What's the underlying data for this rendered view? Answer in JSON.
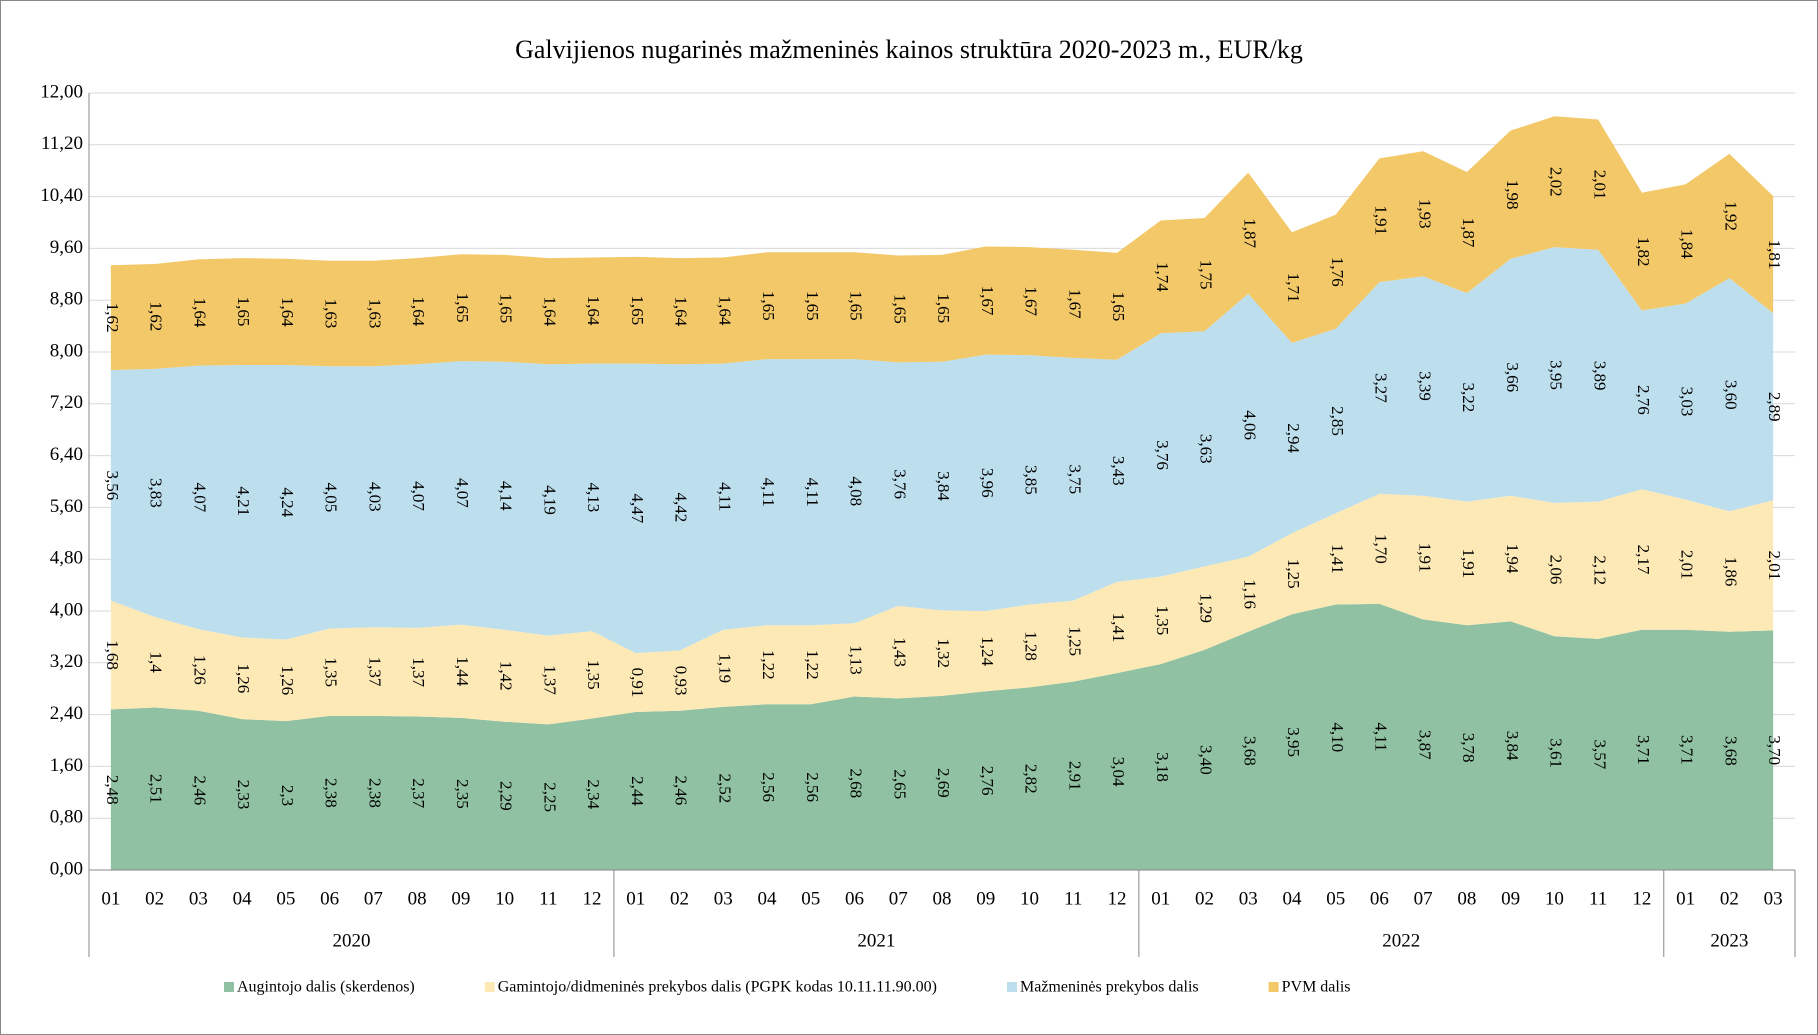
{
  "chart_data": {
    "type": "stacked_area",
    "title": "Galvijienos nugarinės mažmeninės kainos struktūra 2020-2023 m., EUR/kg",
    "groups": [
      {
        "label": "2020",
        "categories": [
          "01",
          "02",
          "03",
          "04",
          "05",
          "06",
          "07",
          "08",
          "09",
          "10",
          "11",
          "12"
        ]
      },
      {
        "label": "2021",
        "categories": [
          "01",
          "02",
          "03",
          "04",
          "05",
          "06",
          "07",
          "08",
          "09",
          "10",
          "11",
          "12"
        ]
      },
      {
        "label": "2022",
        "categories": [
          "01",
          "02",
          "03",
          "04",
          "05",
          "06",
          "07",
          "08",
          "09",
          "10",
          "11",
          "12"
        ]
      },
      {
        "label": "2023",
        "categories": [
          "01",
          "02",
          "03"
        ]
      }
    ],
    "ylim": [
      0,
      12
    ],
    "yticks": [
      {
        "value": 0,
        "label": "0,00"
      },
      {
        "value": 0.8,
        "label": "0,80"
      },
      {
        "value": 1.6,
        "label": "1,60"
      },
      {
        "value": 2.4,
        "label": "2,40"
      },
      {
        "value": 3.2,
        "label": "3,20"
      },
      {
        "value": 4,
        "label": "4,00"
      },
      {
        "value": 4.8,
        "label": "4,80"
      },
      {
        "value": 5.6,
        "label": "5,60"
      },
      {
        "value": 6.4,
        "label": "6,40"
      },
      {
        "value": 7.2,
        "label": "7,20"
      },
      {
        "value": 8,
        "label": "8,00"
      },
      {
        "value": 8.8,
        "label": "8,80"
      },
      {
        "value": 9.6,
        "label": "9,60"
      },
      {
        "value": 10.4,
        "label": "10,40"
      },
      {
        "value": 11.2,
        "label": "11,20"
      },
      {
        "value": 12,
        "label": "12,00"
      }
    ],
    "grid": true,
    "legend": "bottom",
    "series": [
      {
        "name": "Augintojo dalis (skerdenos)",
        "color": "#8fc1a2",
        "values": [
          2.48,
          2.51,
          2.46,
          2.33,
          2.3,
          2.38,
          2.38,
          2.37,
          2.35,
          2.29,
          2.25,
          2.34,
          2.44,
          2.46,
          2.52,
          2.56,
          2.56,
          2.68,
          2.65,
          2.69,
          2.76,
          2.82,
          2.91,
          3.04,
          3.18,
          3.4,
          3.68,
          3.95,
          4.1,
          4.11,
          3.87,
          3.78,
          3.84,
          3.61,
          3.57,
          3.71,
          3.71,
          3.68,
          3.7
        ],
        "value_labels": [
          "2,48",
          "2,51",
          "2,46",
          "2,33",
          "2,3",
          "2,38",
          "2,38",
          "2,37",
          "2,35",
          "2,29",
          "2,25",
          "2,34",
          "2,44",
          "2,46",
          "2,52",
          "2,56",
          "2,56",
          "2,68",
          "2,65",
          "2,69",
          "2,76",
          "2,82",
          "2,91",
          "3,04",
          "3,18",
          "3,40",
          "3,68",
          "3,95",
          "4,10",
          "4,11",
          "3,87",
          "3,78",
          "3,84",
          "3,61",
          "3,57",
          "3,71",
          "3,71",
          "3,68",
          "3,70"
        ]
      },
      {
        "name": "Gamintojo/didmeninės prekybos dalis (PGPK kodas 10.11.11.90.00)",
        "color": "#fde9b6",
        "values": [
          1.68,
          1.4,
          1.26,
          1.26,
          1.26,
          1.35,
          1.37,
          1.37,
          1.44,
          1.42,
          1.37,
          1.35,
          0.91,
          0.93,
          1.19,
          1.22,
          1.22,
          1.13,
          1.43,
          1.32,
          1.24,
          1.28,
          1.25,
          1.41,
          1.35,
          1.29,
          1.16,
          1.25,
          1.41,
          1.7,
          1.91,
          1.91,
          1.94,
          2.06,
          2.12,
          2.17,
          2.01,
          1.86,
          2.01
        ],
        "value_labels": [
          "1,68",
          "1,4",
          "1,26",
          "1,26",
          "1,26",
          "1,35",
          "1,37",
          "1,37",
          "1,44",
          "1,42",
          "1,37",
          "1,35",
          "0,91",
          "0,93",
          "1,19",
          "1,22",
          "1,22",
          "1,13",
          "1,43",
          "1,32",
          "1,24",
          "1,28",
          "1,25",
          "1,41",
          "1,35",
          "1,29",
          "1,16",
          "1,25",
          "1,41",
          "1,70",
          "1,91",
          "1,91",
          "1,94",
          "2,06",
          "2,12",
          "2,17",
          "2,01",
          "1,86",
          "2,01"
        ]
      },
      {
        "name": "Mažmeninės prekybos dalis",
        "color": "#bddeed",
        "values": [
          3.56,
          3.83,
          4.07,
          4.21,
          4.24,
          4.05,
          4.03,
          4.07,
          4.07,
          4.14,
          4.19,
          4.13,
          4.47,
          4.42,
          4.11,
          4.11,
          4.11,
          4.08,
          3.76,
          3.84,
          3.96,
          3.85,
          3.75,
          3.43,
          3.76,
          3.63,
          4.06,
          2.94,
          2.85,
          3.27,
          3.39,
          3.22,
          3.66,
          3.95,
          3.89,
          2.76,
          3.03,
          3.6,
          2.89
        ],
        "value_labels": [
          "3,56",
          "3,83",
          "4,07",
          "4,21",
          "4,24",
          "4,05",
          "4,03",
          "4,07",
          "4,07",
          "4,14",
          "4,19",
          "4,13",
          "4,47",
          "4,42",
          "4,11",
          "4,11",
          "4,11",
          "4,08",
          "3,76",
          "3,84",
          "3,96",
          "3,85",
          "3,75",
          "3,43",
          "3,76",
          "3,63",
          "4,06",
          "2,94",
          "2,85",
          "3,27",
          "3,39",
          "3,22",
          "3,66",
          "3,95",
          "3,89",
          "2,76",
          "3,03",
          "3,60",
          "2,89"
        ]
      },
      {
        "name": "PVM dalis",
        "color": "#f3c868",
        "values": [
          1.62,
          1.62,
          1.64,
          1.65,
          1.64,
          1.63,
          1.63,
          1.64,
          1.65,
          1.65,
          1.64,
          1.64,
          1.65,
          1.64,
          1.64,
          1.65,
          1.65,
          1.65,
          1.65,
          1.65,
          1.67,
          1.67,
          1.67,
          1.65,
          1.74,
          1.75,
          1.87,
          1.71,
          1.76,
          1.91,
          1.93,
          1.87,
          1.98,
          2.02,
          2.01,
          1.82,
          1.84,
          1.92,
          1.81
        ],
        "value_labels": [
          "1,62",
          "1,62",
          "1,64",
          "1,65",
          "1,64",
          "1,63",
          "1,63",
          "1,64",
          "1,65",
          "1,65",
          "1,64",
          "1,64",
          "1,65",
          "1,64",
          "1,64",
          "1,65",
          "1,65",
          "1,65",
          "1,65",
          "1,65",
          "1,67",
          "1,67",
          "1,67",
          "1,65",
          "1,74",
          "1,75",
          "1,87",
          "1,71",
          "1,76",
          "1,91",
          "1,93",
          "1,87",
          "1,98",
          "2,02",
          "2,01",
          "1,82",
          "1,84",
          "1,92",
          "1,81"
        ]
      }
    ]
  }
}
